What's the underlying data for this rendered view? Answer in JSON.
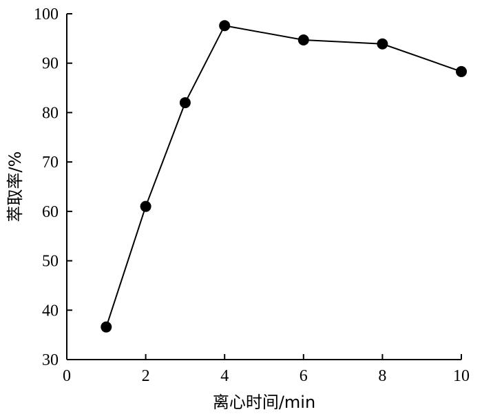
{
  "chart_data": {
    "type": "line",
    "title": "",
    "xlabel": "离心时间/min",
    "ylabel": "萃取率/%",
    "xlim": [
      0,
      10
    ],
    "ylim": [
      30,
      100
    ],
    "xticks": [
      0,
      2,
      4,
      6,
      8,
      10
    ],
    "yticks": [
      30,
      40,
      50,
      60,
      70,
      80,
      90,
      100
    ],
    "grid": false,
    "series": [
      {
        "name": "",
        "color": "#000000",
        "marker": "filled-circle",
        "x": [
          1,
          2,
          3,
          4,
          6,
          8,
          10
        ],
        "y": [
          36.6,
          61.0,
          82.0,
          97.6,
          94.7,
          93.9,
          88.3
        ]
      }
    ]
  }
}
